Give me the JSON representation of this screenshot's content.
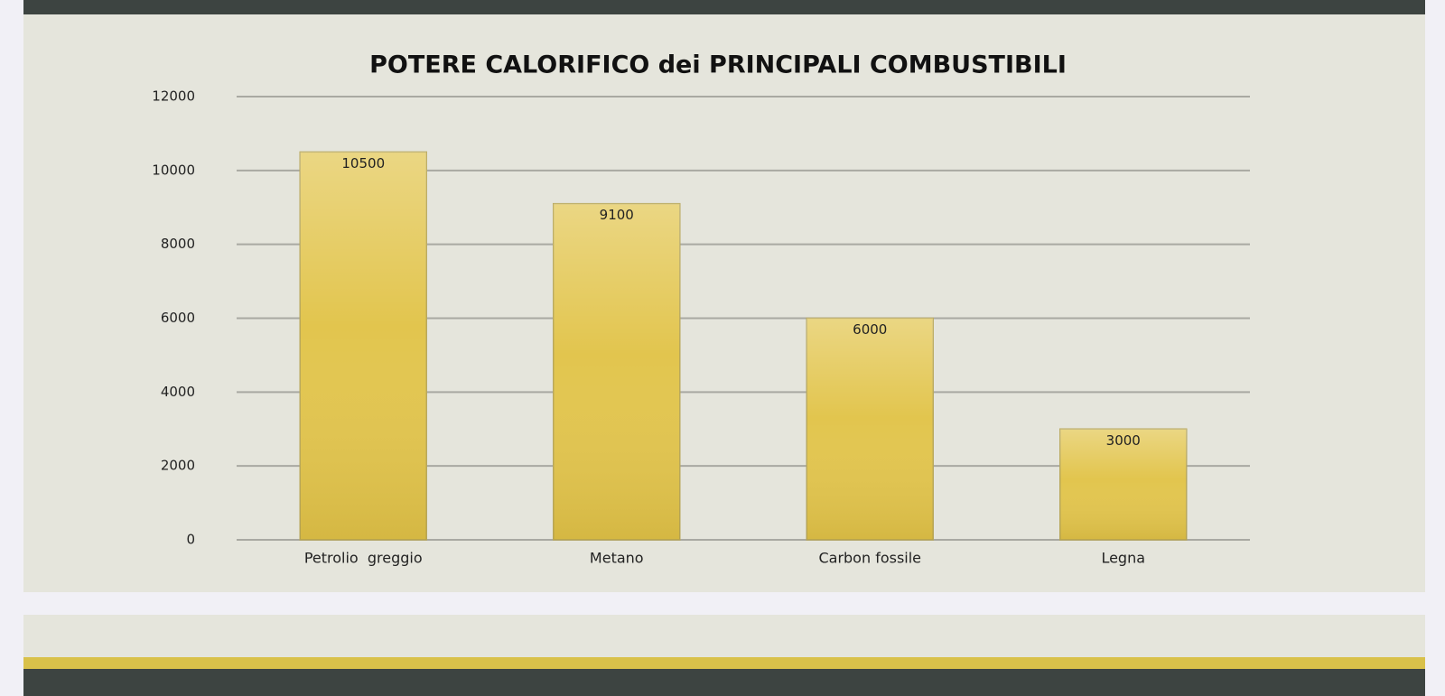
{
  "chart_data": {
    "type": "bar",
    "title": "POTERE CALORIFICO dei PRINCIPALI COMBUSTIBILI",
    "categories": [
      "Petrolio  greggio",
      "Metano",
      "Carbon fossile",
      "Legna"
    ],
    "values": [
      10500,
      9100,
      6000,
      3000
    ],
    "color": "#e2c54e",
    "ylim": [
      0,
      12000
    ],
    "yticks": [
      0,
      2000,
      4000,
      6000,
      8000,
      10000,
      12000
    ],
    "grid": true
  }
}
